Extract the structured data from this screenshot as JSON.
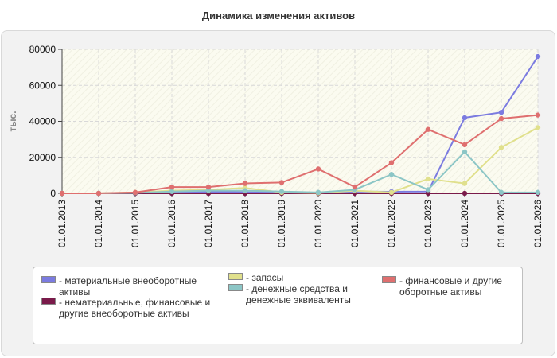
{
  "chart_data": {
    "type": "line",
    "title": "Динамика изменения активов",
    "ylabel": "тыс.",
    "xlabel": "",
    "ylim": [
      0,
      80000
    ],
    "yticks": [
      0,
      20000,
      40000,
      60000,
      80000
    ],
    "x": [
      "01.01.2013",
      "01.01.2014",
      "01.01.2015",
      "01.01.2016",
      "01.01.2017",
      "01.01.2018",
      "01.01.2019",
      "01.01.2020",
      "01.01.2021",
      "01.01.2022",
      "01.01.2023",
      "01.01.2024",
      "01.01.2025",
      "01.01.2026"
    ],
    "grid": true,
    "legend_position": "bottom",
    "series": [
      {
        "name": "- материальные внеоборотные активы",
        "color": "#7b7be0",
        "values": [
          0,
          0,
          200,
          500,
          800,
          600,
          400,
          300,
          1000,
          900,
          1000,
          42000,
          45000,
          76000
        ]
      },
      {
        "name": "- нематериальные, финансовые и другие внеоборотные активы",
        "color": "#7a1a4a",
        "values": [
          0,
          0,
          0,
          0,
          0,
          0,
          0,
          0,
          0,
          0,
          0,
          0,
          0,
          0
        ]
      },
      {
        "name": "- запасы",
        "color": "#e0e08c",
        "values": [
          0,
          0,
          500,
          1500,
          2000,
          3000,
          500,
          200,
          1500,
          500,
          8000,
          5500,
          25500,
          36500
        ]
      },
      {
        "name": "- денежные средства и денежные эквиваленты",
        "color": "#8cc6c6",
        "values": [
          0,
          0,
          300,
          1000,
          1500,
          1500,
          1000,
          500,
          2000,
          10500,
          2000,
          23000,
          500,
          500
        ]
      },
      {
        "name": "- финансовые и другие оборотные активы",
        "color": "#df6f6f",
        "values": [
          0,
          0,
          500,
          3500,
          3500,
          5500,
          6000,
          13500,
          3500,
          17000,
          35500,
          27000,
          41500,
          43500
        ]
      }
    ]
  }
}
